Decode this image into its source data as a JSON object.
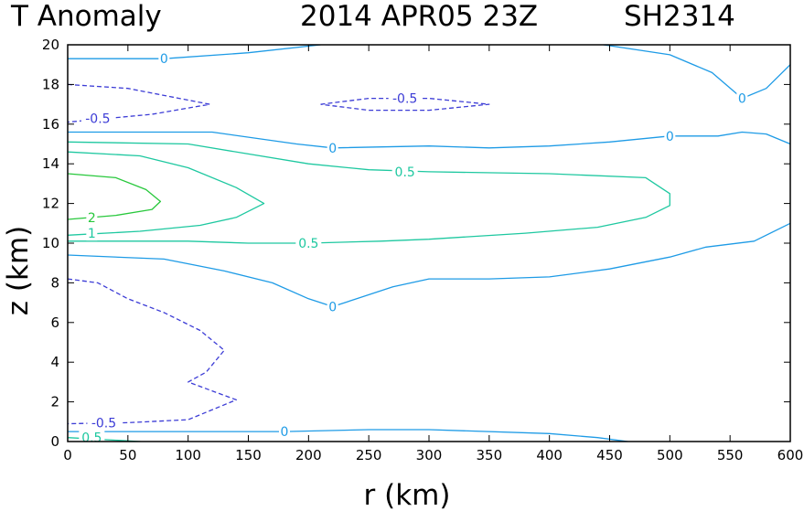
{
  "chart_data": {
    "type": "contour",
    "title_left": "T Anomaly",
    "title_center": "2014 APR05 23Z",
    "title_right": "SH2314",
    "xlabel": "r (km)",
    "ylabel": "z (km)",
    "xlim": [
      0,
      600
    ],
    "ylim": [
      0,
      20
    ],
    "xticks": [
      0,
      50,
      100,
      150,
      200,
      250,
      300,
      350,
      400,
      450,
      500,
      550,
      600
    ],
    "yticks": [
      0,
      2,
      4,
      6,
      8,
      10,
      12,
      14,
      16,
      18,
      20
    ],
    "level_colors": {
      "-0.5": "#3c3cd6",
      "0": "#1e9be6",
      "0.5": "#1ec8a0",
      "1": "#1ec8a0",
      "2": "#28c83c"
    },
    "contours": [
      {
        "level": "0",
        "dashed": false,
        "points": [
          [
            0,
            19.3
          ],
          [
            80,
            19.3
          ],
          [
            150,
            19.6
          ],
          [
            210,
            20
          ]
        ],
        "labels": [
          {
            "text": "0",
            "at": [
              80,
              19.3
            ]
          }
        ]
      },
      {
        "level": "0",
        "dashed": false,
        "points": [
          [
            445,
            20
          ],
          [
            500,
            19.5
          ],
          [
            535,
            18.6
          ],
          [
            560,
            17.3
          ],
          [
            580,
            17.8
          ],
          [
            600,
            19
          ]
        ],
        "labels": [
          {
            "text": "0",
            "at": [
              560,
              17.3
            ]
          }
        ]
      },
      {
        "level": "-0.5",
        "dashed": true,
        "points": [
          [
            0,
            18
          ],
          [
            50,
            17.8
          ],
          [
            118,
            17
          ],
          [
            70,
            16.5
          ],
          [
            0,
            16.1
          ]
        ],
        "labels": [
          {
            "text": "-0.5",
            "at": [
              25,
              16.3
            ]
          }
        ]
      },
      {
        "level": "-0.5",
        "dashed": true,
        "points": [
          [
            210,
            17
          ],
          [
            250,
            17.3
          ],
          [
            300,
            17.3
          ],
          [
            350,
            17
          ],
          [
            300,
            16.7
          ],
          [
            250,
            16.7
          ],
          [
            210,
            17
          ]
        ],
        "labels": [
          {
            "text": "-0.5",
            "at": [
              280,
              17.3
            ]
          }
        ]
      },
      {
        "level": "0",
        "dashed": false,
        "points": [
          [
            0,
            15.6
          ],
          [
            120,
            15.6
          ],
          [
            190,
            15
          ],
          [
            220,
            14.8
          ],
          [
            300,
            14.9
          ],
          [
            350,
            14.8
          ],
          [
            400,
            14.9
          ],
          [
            450,
            15.1
          ],
          [
            500,
            15.4
          ],
          [
            540,
            15.4
          ],
          [
            560,
            15.6
          ],
          [
            580,
            15.5
          ],
          [
            600,
            15
          ]
        ],
        "labels": [
          {
            "text": "0",
            "at": [
              220,
              14.8
            ]
          },
          {
            "text": "0",
            "at": [
              500,
              15.4
            ]
          }
        ]
      },
      {
        "level": "0.5",
        "dashed": false,
        "points": [
          [
            0,
            15.1
          ],
          [
            100,
            15
          ],
          [
            150,
            14.5
          ],
          [
            200,
            14
          ],
          [
            250,
            13.7
          ],
          [
            300,
            13.6
          ],
          [
            400,
            13.5
          ],
          [
            480,
            13.3
          ],
          [
            500,
            12.5
          ],
          [
            500,
            11.9
          ],
          [
            480,
            11.3
          ],
          [
            440,
            10.8
          ],
          [
            380,
            10.5
          ],
          [
            300,
            10.2
          ],
          [
            260,
            10.1
          ],
          [
            200,
            10
          ],
          [
            150,
            10
          ],
          [
            100,
            10.1
          ],
          [
            0,
            10.1
          ]
        ],
        "labels": [
          {
            "text": "0.5",
            "at": [
              280,
              13.6
            ]
          },
          {
            "text": "0.5",
            "at": [
              200,
              10
            ]
          }
        ]
      },
      {
        "level": "1",
        "dashed": false,
        "points": [
          [
            0,
            14.6
          ],
          [
            60,
            14.4
          ],
          [
            100,
            13.8
          ],
          [
            140,
            12.8
          ],
          [
            163,
            12
          ],
          [
            140,
            11.3
          ],
          [
            110,
            10.9
          ],
          [
            60,
            10.6
          ],
          [
            0,
            10.4
          ]
        ],
        "labels": [
          {
            "text": "1",
            "at": [
              20,
              10.5
            ]
          }
        ]
      },
      {
        "level": "2",
        "dashed": false,
        "points": [
          [
            0,
            13.5
          ],
          [
            40,
            13.3
          ],
          [
            65,
            12.7
          ],
          [
            77,
            12.1
          ],
          [
            70,
            11.7
          ],
          [
            40,
            11.4
          ],
          [
            0,
            11.2
          ]
        ],
        "labels": [
          {
            "text": "2",
            "at": [
              20,
              11.3
            ]
          }
        ]
      },
      {
        "level": "0",
        "dashed": false,
        "points": [
          [
            0,
            9.4
          ],
          [
            80,
            9.2
          ],
          [
            130,
            8.6
          ],
          [
            170,
            8
          ],
          [
            200,
            7.2
          ],
          [
            220,
            6.8
          ],
          [
            240,
            7.2
          ],
          [
            270,
            7.8
          ],
          [
            300,
            8.2
          ],
          [
            350,
            8.2
          ],
          [
            400,
            8.3
          ],
          [
            450,
            8.7
          ],
          [
            500,
            9.3
          ],
          [
            530,
            9.8
          ],
          [
            570,
            10.1
          ],
          [
            600,
            11
          ]
        ],
        "labels": [
          {
            "text": "0",
            "at": [
              220,
              6.8
            ]
          }
        ]
      },
      {
        "level": "-0.5",
        "dashed": true,
        "points": [
          [
            0,
            8.2
          ],
          [
            25,
            8
          ],
          [
            50,
            7.2
          ],
          [
            80,
            6.5
          ],
          [
            110,
            5.6
          ],
          [
            130,
            4.6
          ],
          [
            115,
            3.5
          ],
          [
            100,
            3
          ],
          [
            140,
            2.1
          ],
          [
            100,
            1.1
          ],
          [
            50,
            0.95
          ],
          [
            0,
            0.9
          ]
        ],
        "labels": [
          {
            "text": "-0.5",
            "at": [
              30,
              0.95
            ]
          }
        ]
      },
      {
        "level": "0",
        "dashed": false,
        "points": [
          [
            0,
            0.5
          ],
          [
            100,
            0.5
          ],
          [
            180,
            0.5
          ],
          [
            250,
            0.6
          ],
          [
            300,
            0.6
          ],
          [
            400,
            0.4
          ],
          [
            440,
            0.2
          ],
          [
            465,
            0
          ]
        ],
        "labels": [
          {
            "text": "0",
            "at": [
              180,
              0.5
            ]
          }
        ]
      },
      {
        "level": "0.5",
        "dashed": false,
        "points": [
          [
            0,
            0.2
          ],
          [
            60,
            0
          ],
          [
            110,
            -0.5
          ]
        ],
        "labels": [
          {
            "text": "0.5",
            "at": [
              20,
              0.2
            ]
          }
        ]
      }
    ]
  }
}
